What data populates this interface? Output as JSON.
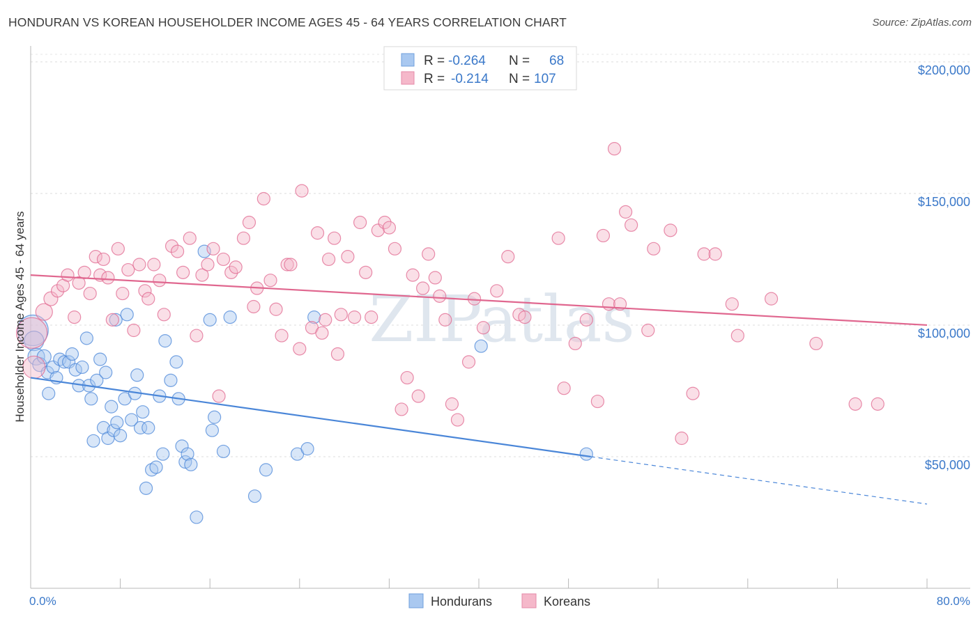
{
  "chart_data": {
    "type": "scatter",
    "title": "HONDURAN VS KOREAN HOUSEHOLDER INCOME AGES 45 - 64 YEARS CORRELATION CHART",
    "source": "Source: ZipAtlas.com",
    "xlabel": "",
    "ylabel": "Householder Income Ages 45 - 64 years",
    "xlim": [
      0,
      80
    ],
    "ylim": [
      0,
      205000
    ],
    "x_tick_labels": [
      "0.0%",
      "80.0%"
    ],
    "y_ticks": [
      50000,
      100000,
      150000,
      200000
    ],
    "y_tick_labels": [
      "$50,000",
      "$100,000",
      "$150,000",
      "$200,000"
    ],
    "watermark": "ZIPatlas",
    "legend": {
      "rows": [
        {
          "r_label": "R =",
          "r_value": "-0.264",
          "n_label": "N =",
          "n_value": "68",
          "color": "#a9c8f0"
        },
        {
          "r_label": "R =",
          "r_value": "-0.214",
          "n_label": "N =",
          "n_value": "107",
          "color": "#f5b8ca"
        }
      ]
    },
    "series": [
      {
        "name": "Hondurans",
        "color": "#4a86d8",
        "fill": "#a9c8f0",
        "trend": {
          "x0": 0,
          "y0": 80000,
          "x1": 50,
          "y1": 50000,
          "dash_to_x": 80,
          "dash_to_y": 32000
        },
        "points": [
          [
            0.2,
            98000,
            22
          ],
          [
            0.3,
            94000,
            14
          ],
          [
            0.5,
            88000,
            12
          ],
          [
            0.8,
            85000,
            10
          ],
          [
            1.2,
            88000,
            10
          ],
          [
            1.5,
            82000,
            9
          ],
          [
            1.6,
            74000,
            9
          ],
          [
            2.0,
            84000,
            9
          ],
          [
            2.3,
            80000,
            9
          ],
          [
            2.6,
            87000,
            9
          ],
          [
            3.0,
            86000,
            9
          ],
          [
            3.4,
            86000,
            9
          ],
          [
            3.7,
            89000,
            9
          ],
          [
            4.0,
            83000,
            9
          ],
          [
            4.3,
            77000,
            9
          ],
          [
            4.6,
            84000,
            9
          ],
          [
            5.0,
            95000,
            9
          ],
          [
            5.2,
            77000,
            9
          ],
          [
            5.4,
            72000,
            9
          ],
          [
            5.6,
            56000,
            9
          ],
          [
            5.9,
            79000,
            9
          ],
          [
            6.2,
            87000,
            9
          ],
          [
            6.5,
            61000,
            9
          ],
          [
            6.7,
            82000,
            9
          ],
          [
            6.9,
            57000,
            9
          ],
          [
            7.2,
            69000,
            9
          ],
          [
            7.4,
            60000,
            9
          ],
          [
            7.7,
            63000,
            9
          ],
          [
            8.0,
            58000,
            9
          ],
          [
            8.4,
            72000,
            9
          ],
          [
            8.6,
            104000,
            9
          ],
          [
            7.6,
            102000,
            9
          ],
          [
            9.0,
            64000,
            9
          ],
          [
            9.3,
            74000,
            9
          ],
          [
            9.5,
            81000,
            9
          ],
          [
            9.8,
            61000,
            9
          ],
          [
            10.0,
            67000,
            9
          ],
          [
            10.5,
            61000,
            9
          ],
          [
            10.8,
            45000,
            9
          ],
          [
            11.2,
            46000,
            9
          ],
          [
            11.5,
            73000,
            9
          ],
          [
            11.8,
            51000,
            9
          ],
          [
            12.0,
            94000,
            9
          ],
          [
            12.5,
            79000,
            9
          ],
          [
            13.0,
            86000,
            9
          ],
          [
            13.2,
            72000,
            9
          ],
          [
            13.5,
            54000,
            9
          ],
          [
            13.8,
            48000,
            9
          ],
          [
            14.0,
            51000,
            9
          ],
          [
            14.3,
            47000,
            9
          ],
          [
            10.3,
            38000,
            9
          ],
          [
            14.8,
            27000,
            9
          ],
          [
            15.5,
            128000,
            9
          ],
          [
            16.0,
            102000,
            9
          ],
          [
            16.2,
            60000,
            9
          ],
          [
            16.4,
            65000,
            9
          ],
          [
            17.2,
            52000,
            9
          ],
          [
            17.8,
            103000,
            9
          ],
          [
            20.0,
            35000,
            9
          ],
          [
            21.0,
            45000,
            9
          ],
          [
            23.8,
            51000,
            9
          ],
          [
            24.7,
            53000,
            9
          ],
          [
            25.3,
            103000,
            9
          ],
          [
            40.2,
            92000,
            9
          ],
          [
            49.6,
            51000,
            9
          ]
        ]
      },
      {
        "name": "Koreans",
        "color": "#e0678f",
        "fill": "#f5b8ca",
        "trend": {
          "x0": 0,
          "y0": 119000,
          "x1": 80,
          "y1": 100000
        },
        "points": [
          [
            0.1,
            97000,
            22
          ],
          [
            0.3,
            84000,
            16
          ],
          [
            1.2,
            105000,
            12
          ],
          [
            1.8,
            110000,
            10
          ],
          [
            2.4,
            113000,
            9
          ],
          [
            2.9,
            115000,
            9
          ],
          [
            3.3,
            119000,
            9
          ],
          [
            3.9,
            103000,
            9
          ],
          [
            4.3,
            116000,
            9
          ],
          [
            4.8,
            120000,
            9
          ],
          [
            5.3,
            112000,
            9
          ],
          [
            5.8,
            126000,
            9
          ],
          [
            6.2,
            119000,
            9
          ],
          [
            6.5,
            125000,
            9
          ],
          [
            6.9,
            118000,
            9
          ],
          [
            7.3,
            102000,
            9
          ],
          [
            7.8,
            129000,
            9
          ],
          [
            8.2,
            112000,
            9
          ],
          [
            8.7,
            121000,
            9
          ],
          [
            9.2,
            98000,
            9
          ],
          [
            9.7,
            123000,
            9
          ],
          [
            10.2,
            113000,
            9
          ],
          [
            10.5,
            110000,
            9
          ],
          [
            11.0,
            123000,
            9
          ],
          [
            11.5,
            117000,
            9
          ],
          [
            11.9,
            104000,
            9
          ],
          [
            12.6,
            130000,
            9
          ],
          [
            13.1,
            128000,
            9
          ],
          [
            13.6,
            120000,
            9
          ],
          [
            14.2,
            133000,
            9
          ],
          [
            14.8,
            96000,
            9
          ],
          [
            15.3,
            119000,
            9
          ],
          [
            15.8,
            123000,
            9
          ],
          [
            16.3,
            129000,
            9
          ],
          [
            16.8,
            73000,
            9
          ],
          [
            17.2,
            125000,
            9
          ],
          [
            17.9,
            120000,
            9
          ],
          [
            18.3,
            122000,
            9
          ],
          [
            19.0,
            133000,
            9
          ],
          [
            19.5,
            139000,
            9
          ],
          [
            19.9,
            107000,
            9
          ],
          [
            20.2,
            114000,
            9
          ],
          [
            20.8,
            148000,
            9
          ],
          [
            21.4,
            117000,
            9
          ],
          [
            21.9,
            106000,
            9
          ],
          [
            22.4,
            96000,
            9
          ],
          [
            22.9,
            123000,
            9
          ],
          [
            23.2,
            123000,
            9
          ],
          [
            24.0,
            91000,
            9
          ],
          [
            24.2,
            151000,
            9
          ],
          [
            25.1,
            99000,
            9
          ],
          [
            25.6,
            135000,
            9
          ],
          [
            26.0,
            97000,
            9
          ],
          [
            26.3,
            102000,
            9
          ],
          [
            26.6,
            125000,
            9
          ],
          [
            27.1,
            133000,
            9
          ],
          [
            27.4,
            89000,
            9
          ],
          [
            27.7,
            104000,
            9
          ],
          [
            28.3,
            126000,
            9
          ],
          [
            28.9,
            103000,
            9
          ],
          [
            29.4,
            139000,
            9
          ],
          [
            29.9,
            120000,
            9
          ],
          [
            30.4,
            103000,
            9
          ],
          [
            31.0,
            136000,
            9
          ],
          [
            31.6,
            139000,
            9
          ],
          [
            32.0,
            137000,
            9
          ],
          [
            32.5,
            129000,
            9
          ],
          [
            33.1,
            68000,
            9
          ],
          [
            33.6,
            80000,
            9
          ],
          [
            34.1,
            119000,
            9
          ],
          [
            34.6,
            73000,
            9
          ],
          [
            35.0,
            114000,
            9
          ],
          [
            35.5,
            127000,
            9
          ],
          [
            36.1,
            118000,
            9
          ],
          [
            36.5,
            111000,
            9
          ],
          [
            37.0,
            102000,
            9
          ],
          [
            37.6,
            70000,
            9
          ],
          [
            38.1,
            64000,
            9
          ],
          [
            39.1,
            86000,
            9
          ],
          [
            39.6,
            110000,
            9
          ],
          [
            40.4,
            99000,
            9
          ],
          [
            41.6,
            113000,
            9
          ],
          [
            42.6,
            126000,
            9
          ],
          [
            43.6,
            104000,
            9
          ],
          [
            44.1,
            103000,
            9
          ],
          [
            47.6,
            76000,
            9
          ],
          [
            47.1,
            133000,
            9
          ],
          [
            48.6,
            93000,
            9
          ],
          [
            49.6,
            102000,
            9
          ],
          [
            50.6,
            71000,
            9
          ],
          [
            51.1,
            134000,
            9
          ],
          [
            51.6,
            108000,
            9
          ],
          [
            52.1,
            167000,
            9
          ],
          [
            52.6,
            108000,
            9
          ],
          [
            53.1,
            143000,
            9
          ],
          [
            53.6,
            138000,
            9
          ],
          [
            55.1,
            98000,
            9
          ],
          [
            55.6,
            129000,
            9
          ],
          [
            57.1,
            136000,
            9
          ],
          [
            58.1,
            57000,
            9
          ],
          [
            59.1,
            74000,
            9
          ],
          [
            60.1,
            127000,
            9
          ],
          [
            61.1,
            127000,
            9
          ],
          [
            62.6,
            108000,
            9
          ],
          [
            63.1,
            96000,
            9
          ],
          [
            66.1,
            110000,
            9
          ],
          [
            70.1,
            93000,
            9
          ],
          [
            73.6,
            70000,
            9
          ],
          [
            75.6,
            70000,
            9
          ]
        ]
      }
    ],
    "bottom_legend": [
      "Hondurans",
      "Koreans"
    ]
  }
}
